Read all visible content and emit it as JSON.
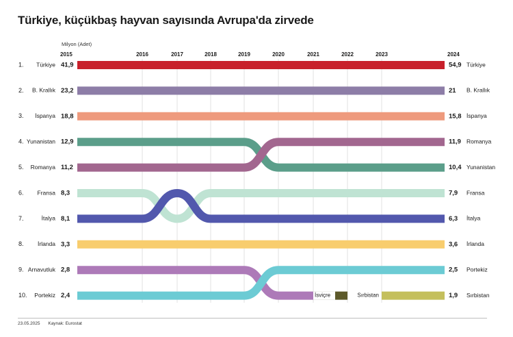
{
  "title": "Türkiye, küçükbaş hayvan sayısında Avrupa'da zirvede",
  "footer": {
    "date": "23.05.2025",
    "source": "Kaynak: Eurostat"
  },
  "chart_data": {
    "type": "bump",
    "unit_label": "Milyon (Adet)",
    "years": [
      "2015",
      "2016",
      "2017",
      "2018",
      "2019",
      "2020",
      "2021",
      "2022",
      "2023",
      "2024"
    ],
    "ranks": [
      "1.",
      "2.",
      "3.",
      "4.",
      "5.",
      "6.",
      "7.",
      "8.",
      "9.",
      "10."
    ],
    "series": [
      {
        "name_left": "Türkiye",
        "name_right": "Türkiye",
        "value_2015": "41,9",
        "value_2024": "54,9",
        "color": "#c8202b",
        "path": [
          [
            2015,
            1
          ],
          [
            2024,
            1
          ]
        ]
      },
      {
        "name_left": "B. Krallık",
        "name_right": "B. Krallık",
        "value_2015": "23,2",
        "value_2024": "21",
        "color": "#8d7da7",
        "path": [
          [
            2015,
            2
          ],
          [
            2024,
            2
          ]
        ]
      },
      {
        "name_left": "İspanya",
        "name_right": "İspanya",
        "value_2015": "18,8",
        "value_2024": "15,8",
        "color": "#ee9a7d",
        "path": [
          [
            2015,
            3
          ],
          [
            2024,
            3
          ]
        ]
      },
      {
        "name_left": "Yunanistan",
        "name_right": "Yunanistan",
        "value_2015": "12,9",
        "value_2024": "10,4",
        "color": "#5b9e8a",
        "path": [
          [
            2015,
            4
          ],
          [
            2019,
            4
          ],
          [
            2020,
            5
          ],
          [
            2024,
            5
          ]
        ]
      },
      {
        "name_left": "Romanya",
        "name_right": "Romanya",
        "value_2015": "11,2",
        "value_2024": "11,9",
        "color": "#a2678f",
        "path": [
          [
            2015,
            5
          ],
          [
            2019,
            5
          ],
          [
            2020,
            4
          ],
          [
            2024,
            4
          ]
        ]
      },
      {
        "name_left": "Fransa",
        "name_right": "Fransa",
        "value_2015": "8,3",
        "value_2024": "7,9",
        "color": "#bfe3d3",
        "path": [
          [
            2015,
            6
          ],
          [
            2016,
            6
          ],
          [
            2017,
            7
          ],
          [
            2018,
            6
          ],
          [
            2024,
            6
          ]
        ]
      },
      {
        "name_left": "İtalya",
        "name_right": "İtalya",
        "value_2015": "8,1",
        "value_2024": "6,3",
        "color": "#5258ad",
        "path": [
          [
            2015,
            7
          ],
          [
            2016,
            7
          ],
          [
            2017,
            6
          ],
          [
            2018,
            7
          ],
          [
            2024,
            7
          ]
        ]
      },
      {
        "name_left": "İrlanda",
        "name_right": "İrlanda",
        "value_2015": "3,3",
        "value_2024": "3,6",
        "color": "#f8cd6e",
        "path": [
          [
            2015,
            8
          ],
          [
            2024,
            8
          ]
        ]
      },
      {
        "name_left": "Arnavutluk",
        "name_right": "",
        "value_2015": "2,8",
        "value_2024": "",
        "color": "#ad7ab8",
        "path": [
          [
            2015,
            9
          ],
          [
            2019,
            9
          ],
          [
            2020,
            10
          ],
          [
            2021,
            10
          ]
        ]
      },
      {
        "name_left": "Portekiz",
        "name_right": "Portekiz",
        "value_2015": "2,4",
        "value_2024": "2,5",
        "color": "#6ccbd4",
        "path": [
          [
            2015,
            10
          ],
          [
            2019,
            10
          ],
          [
            2020,
            9
          ],
          [
            2024,
            9
          ]
        ]
      },
      {
        "name_left": "",
        "name_right": "",
        "value_2015": "",
        "value_2024": "",
        "color": "#5d5a2a",
        "label": "İsviçre",
        "path": [
          [
            2021,
            10
          ],
          [
            2022,
            10
          ]
        ]
      },
      {
        "name_left": "",
        "name_right": "Sırbistan",
        "value_2015": "",
        "value_2024": "1,9",
        "color": "#c4bf5c",
        "label": "Sırbistan",
        "path": [
          [
            2023,
            10
          ],
          [
            2024,
            10
          ]
        ]
      }
    ]
  }
}
